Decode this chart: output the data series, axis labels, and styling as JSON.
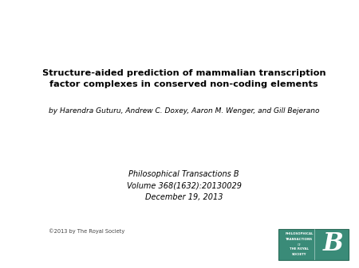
{
  "title_line1": "Structure-aided prediction of mammalian transcription",
  "title_line2": "factor complexes in conserved non-coding elements",
  "authors": "by Harendra Guturu, Andrew C. Doxey, Aaron M. Wenger, and Gill Bejerano",
  "journal_line1": "Philosophical Transactions B",
  "journal_line2": "Volume 368(1632):20130029",
  "journal_line3": "December 19, 2013",
  "copyright": "©2013 by The Royal Society",
  "background_color": "#ffffff",
  "title_color": "#000000",
  "authors_color": "#000000",
  "journal_color": "#000000",
  "copyright_color": "#444444",
  "title_fontsize": 8.2,
  "authors_fontsize": 6.5,
  "journal_fontsize": 7.0,
  "copyright_fontsize": 4.8,
  "logo_color": "#3a8b78",
  "logo_border_color": "#2a6b58"
}
